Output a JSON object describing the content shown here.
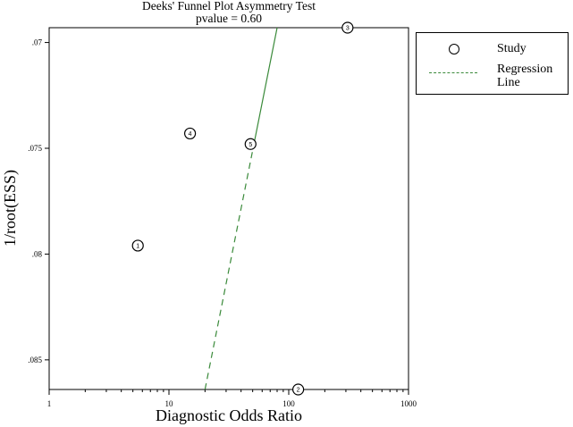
{
  "chart_data": {
    "type": "scatter",
    "title": "Deeks' Funnel Plot Asymmetry Test",
    "subtitle": "pvalue =   0.60",
    "xlabel": "Diagnostic Odds Ratio",
    "ylabel": "1/root(ESS)",
    "x_scale": "log",
    "xlim": [
      1,
      1000
    ],
    "ylim": [
      0.0864,
      0.0693
    ],
    "y_inverted": true,
    "x_ticks": [
      "1",
      "10",
      "100",
      "1000"
    ],
    "x_tick_values": [
      1,
      10,
      100,
      1000
    ],
    "y_ticks": [
      ".07",
      ".075",
      ".08",
      ".085"
    ],
    "y_tick_values": [
      0.07,
      0.075,
      0.08,
      0.085
    ],
    "points": [
      {
        "label": "1",
        "x": 5.5,
        "y": 0.0796
      },
      {
        "label": "2",
        "x": 120,
        "y": 0.0864
      },
      {
        "label": "3",
        "x": 310,
        "y": 0.0693
      },
      {
        "label": "4",
        "x": 15,
        "y": 0.0743
      },
      {
        "label": "5",
        "x": 48,
        "y": 0.0748
      }
    ],
    "regression_line": {
      "points": [
        {
          "x": 20,
          "y": 0.0864
        },
        {
          "x": 80,
          "y": 0.0693
        }
      ],
      "dashed_from_y": 0.0864,
      "dashed_to_y": 0.0748
    },
    "legend": {
      "position": "right",
      "entries": [
        {
          "label": "Study",
          "marker": "circle"
        },
        {
          "label": "Regression Line",
          "marker": "dashed-line"
        }
      ]
    },
    "colors": {
      "regression": "#3a8a3a",
      "axes": "#000000"
    }
  }
}
